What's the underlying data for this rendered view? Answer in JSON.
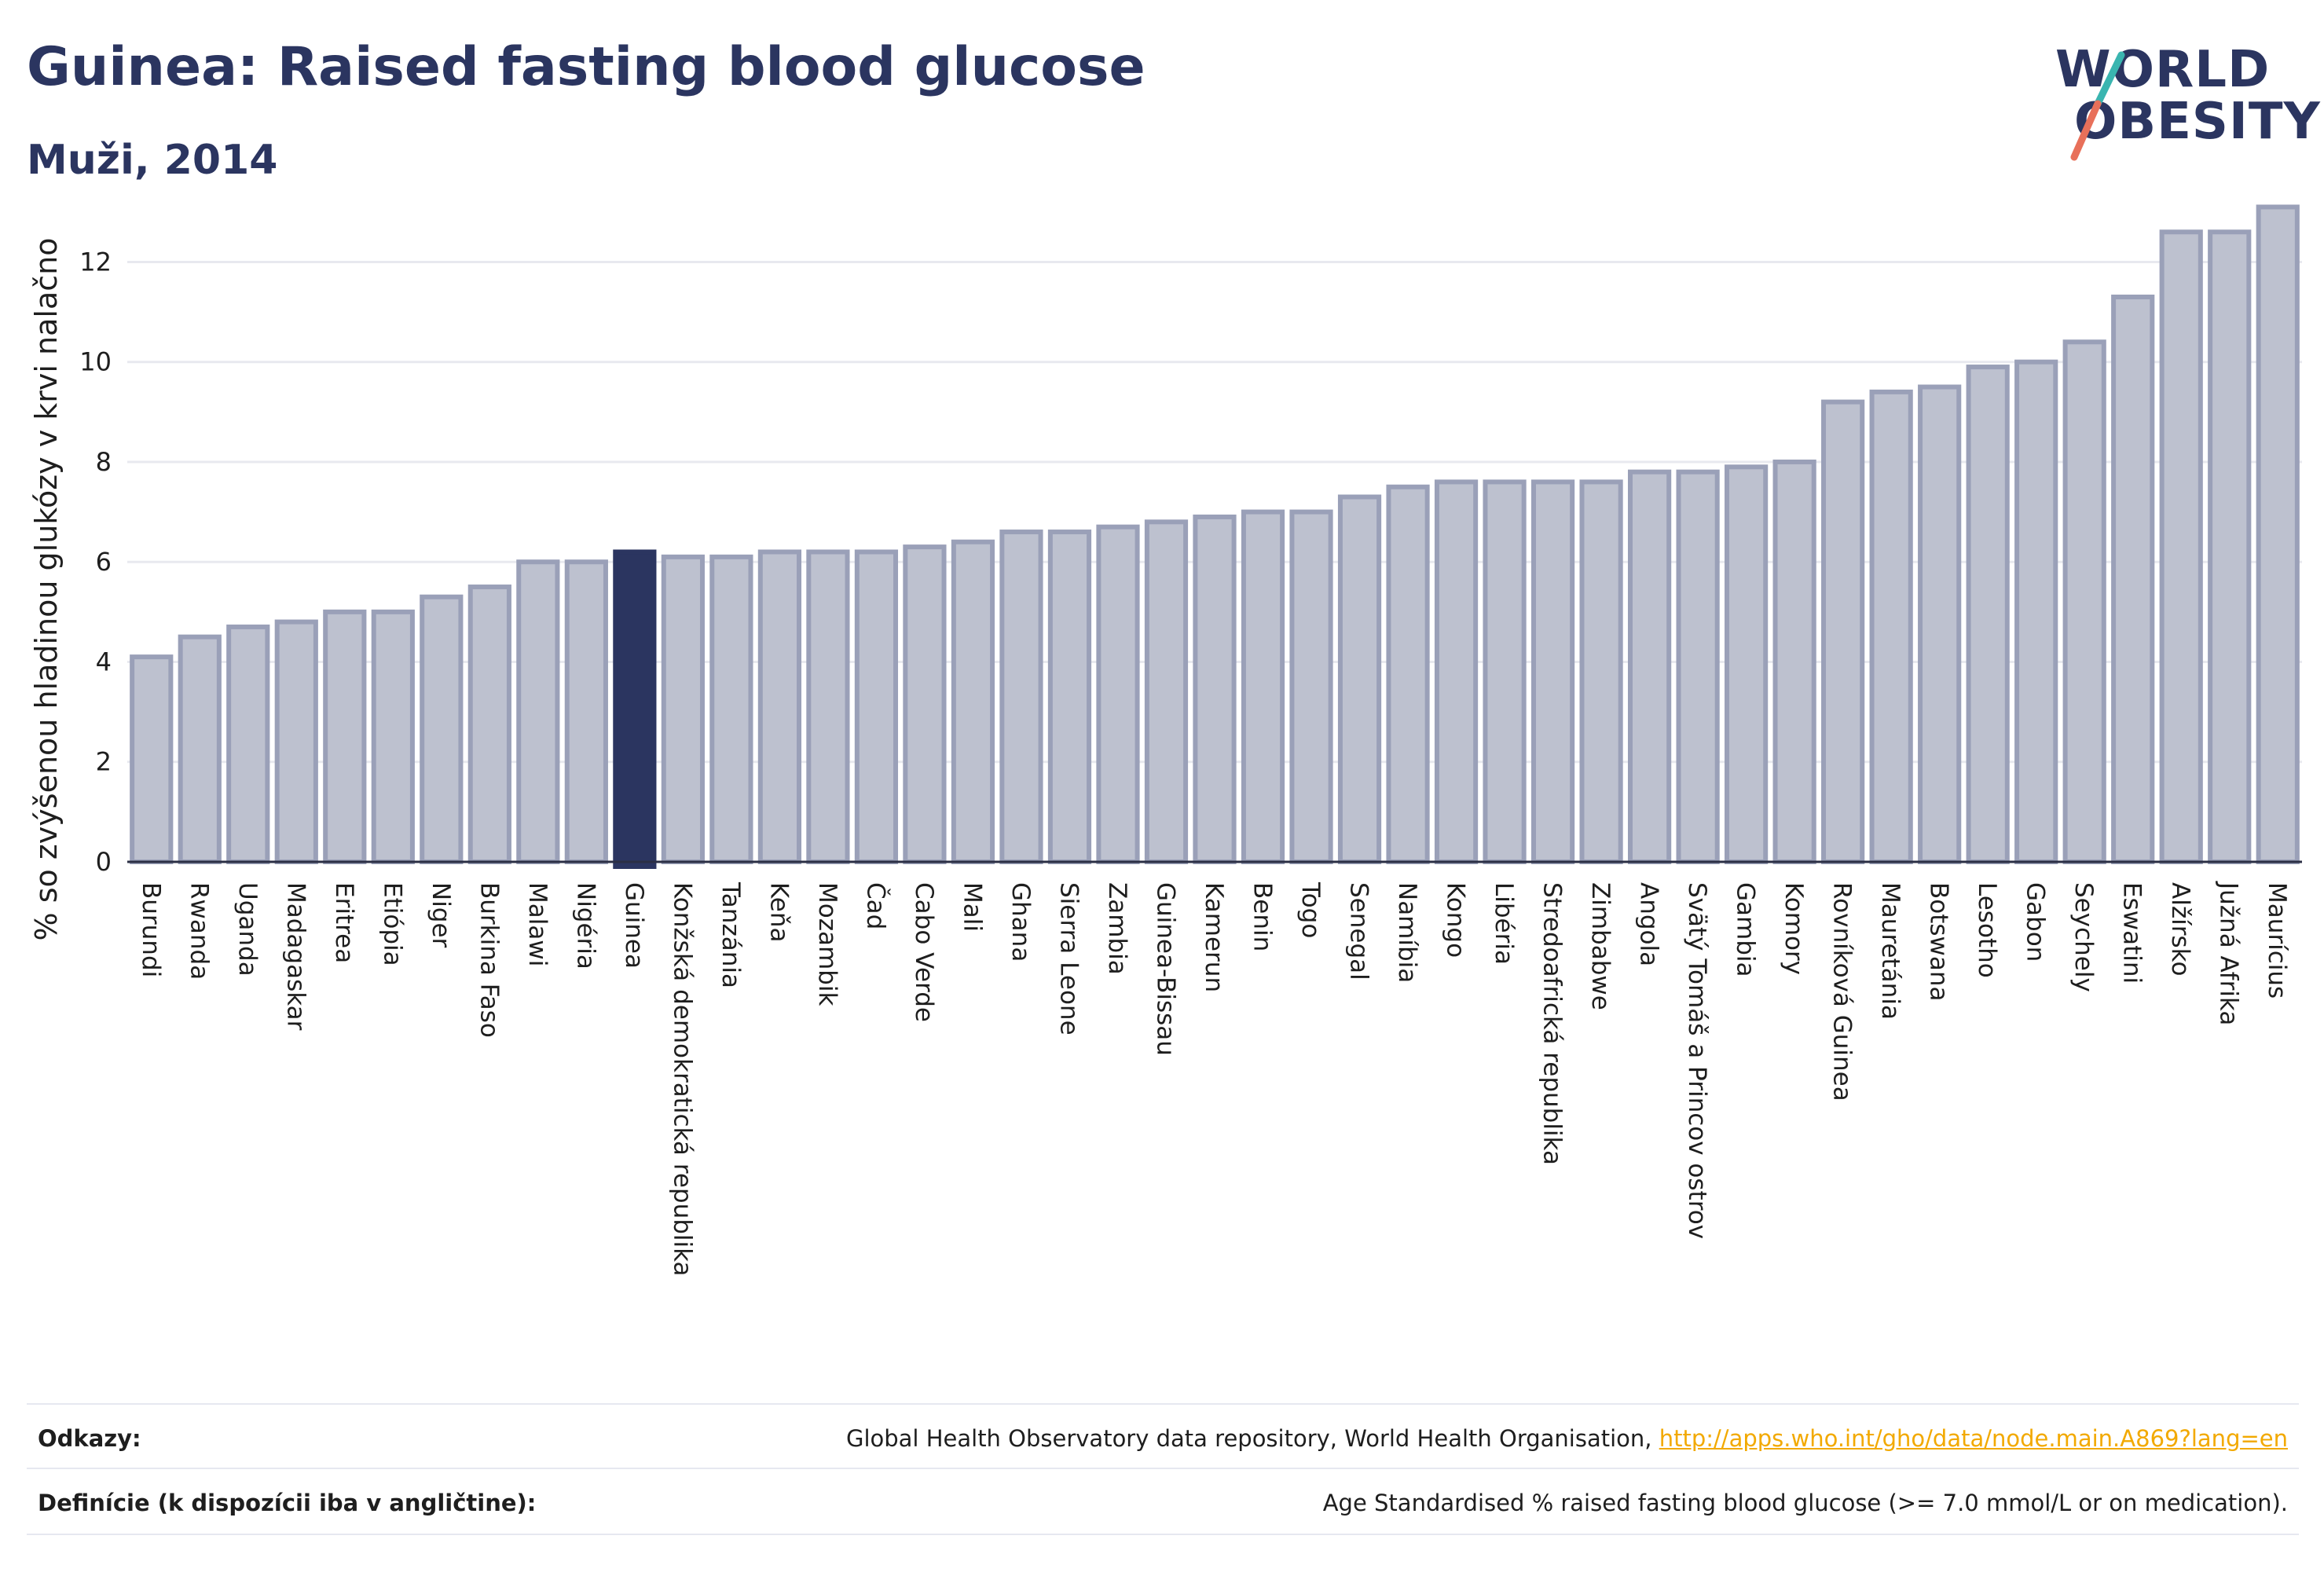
{
  "header": {
    "title": "Guinea: Raised fasting blood glucose",
    "subtitle": "Muži, 2014"
  },
  "logo": {
    "line1": "WORLD",
    "line2": "OBESITY"
  },
  "chart_data": {
    "type": "bar",
    "title": "Guinea: Raised fasting blood glucose",
    "subtitle": "Muži, 2014",
    "ylabel": "% so zvýšenou hladinou glukózy v krvi nalačno",
    "xlabel": "",
    "ylim": [
      0,
      13.5
    ],
    "yticks": [
      0,
      2,
      4,
      6,
      8,
      10,
      12
    ],
    "grid": true,
    "highlight": "Guinea",
    "colors": {
      "bar": "#bdc1cf",
      "bar_edge": "#9aa0b8",
      "highlight": "#2b3560"
    },
    "categories": [
      "Burundi",
      "Rwanda",
      "Uganda",
      "Madagaskar",
      "Eritrea",
      "Etiópia",
      "Niger",
      "Burkina Faso",
      "Malawi",
      "Nigéria",
      "Guinea",
      "Konžská demokratická republika",
      "Tanzánia",
      "Keňa",
      "Mozambik",
      "Čad",
      "Cabo Verde",
      "Mali",
      "Ghana",
      "Sierra Leone",
      "Zambia",
      "Guinea-Bissau",
      "Kamerun",
      "Benin",
      "Togo",
      "Senegal",
      "Namíbia",
      "Kongo",
      "Libéria",
      "Stredoafrická republika",
      "Zimbabwe",
      "Angola",
      "Svätý Tomáš a Princov ostrov",
      "Gambia",
      "Komory",
      "Rovníková Guinea",
      "Mauretánia",
      "Botswana",
      "Lesotho",
      "Gabon",
      "Seychely",
      "Eswatini",
      "Alžírsko",
      "Južná Afrika",
      "Maurícius"
    ],
    "values": [
      4.1,
      4.5,
      4.7,
      4.8,
      5.0,
      5.0,
      5.3,
      5.5,
      6.0,
      6.0,
      6.2,
      6.1,
      6.1,
      6.2,
      6.2,
      6.2,
      6.3,
      6.4,
      6.6,
      6.6,
      6.7,
      6.8,
      6.9,
      7.0,
      7.0,
      7.3,
      7.5,
      7.6,
      7.6,
      7.6,
      7.6,
      7.8,
      7.8,
      7.9,
      8.0,
      9.2,
      9.4,
      9.5,
      9.9,
      10.0,
      10.4,
      11.3,
      12.6,
      12.6,
      13.1
    ]
  },
  "footer": {
    "references_label": "Odkazy:",
    "references_text": "Global Health Observatory data repository, World Health Organisation, ",
    "references_link": "http://apps.who.int/gho/data/node.main.A869?lang=en",
    "definitions_label": "Definície (k dispozícii iba v angličtine):",
    "definitions_text": "Age Standardised % raised fasting blood glucose (>= 7.0 mmol/L or on medication)."
  }
}
